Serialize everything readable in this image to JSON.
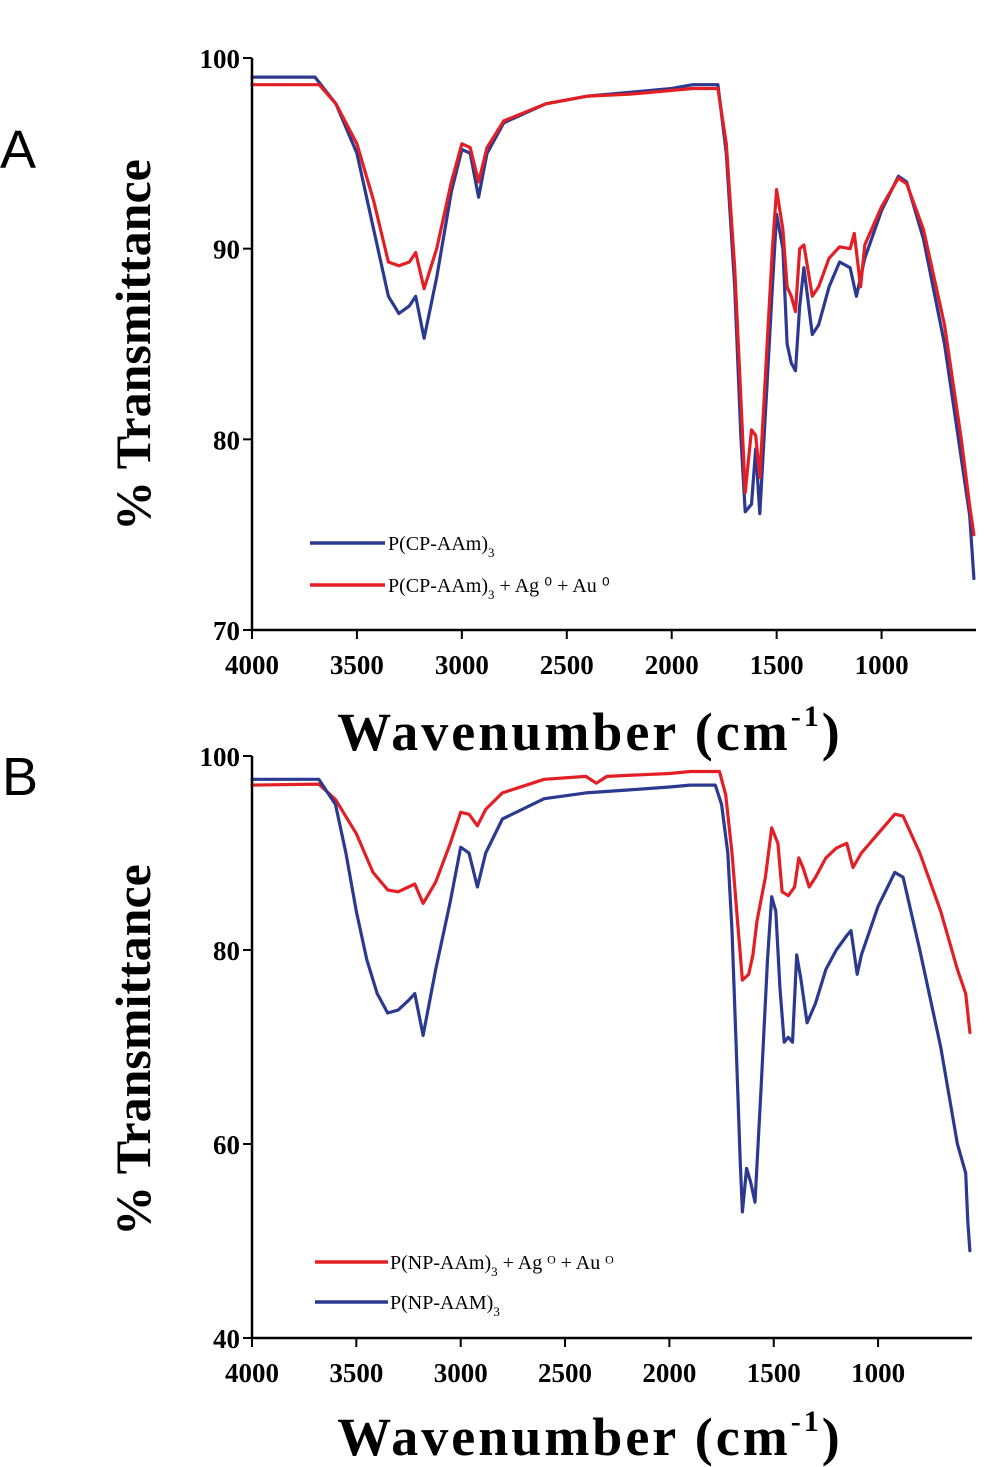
{
  "chart_data": [
    {
      "type": "line",
      "panel_label": "A",
      "xlabel": "Wavenumber (cm",
      "xlabel_sup": "-1",
      "xlabel_close": ")",
      "ylabel": "% Transmittance",
      "xlim": [
        4000,
        550
      ],
      "ylim": [
        70,
        100
      ],
      "xticks": [
        4000,
        3500,
        3000,
        2500,
        2000,
        1500,
        1000
      ],
      "yticks": [
        70,
        80,
        90,
        100
      ],
      "grid": false,
      "legend_position": "bottom-left",
      "series": [
        {
          "name": "P(CP-AAm)",
          "name_sub": "3",
          "name_rest": "",
          "color": "#2b3990",
          "points": [
            [
              4000,
              99.0
            ],
            [
              3700,
              99.0
            ],
            [
              3600,
              97.6
            ],
            [
              3500,
              95.0
            ],
            [
              3420,
              91.0
            ],
            [
              3350,
              87.5
            ],
            [
              3300,
              86.6
            ],
            [
              3250,
              87.0
            ],
            [
              3220,
              87.5
            ],
            [
              3180,
              85.3
            ],
            [
              3120,
              88.5
            ],
            [
              3050,
              93.0
            ],
            [
              3000,
              95.2
            ],
            [
              2960,
              95.0
            ],
            [
              2920,
              92.7
            ],
            [
              2880,
              95.0
            ],
            [
              2800,
              96.6
            ],
            [
              2600,
              97.6
            ],
            [
              2400,
              98.0
            ],
            [
              2200,
              98.2
            ],
            [
              2000,
              98.4
            ],
            [
              1900,
              98.6
            ],
            [
              1780,
              98.6
            ],
            [
              1740,
              95.0
            ],
            [
              1700,
              88.0
            ],
            [
              1670,
              80.0
            ],
            [
              1650,
              76.2
            ],
            [
              1620,
              76.6
            ],
            [
              1600,
              79.5
            ],
            [
              1580,
              76.1
            ],
            [
              1550,
              82.0
            ],
            [
              1520,
              88.0
            ],
            [
              1500,
              91.8
            ],
            [
              1470,
              90.0
            ],
            [
              1450,
              85.0
            ],
            [
              1430,
              84.0
            ],
            [
              1410,
              83.6
            ],
            [
              1390,
              87.0
            ],
            [
              1370,
              89.0
            ],
            [
              1330,
              85.5
            ],
            [
              1300,
              86.0
            ],
            [
              1250,
              88.0
            ],
            [
              1200,
              89.3
            ],
            [
              1150,
              89.0
            ],
            [
              1120,
              87.5
            ],
            [
              1080,
              89.5
            ],
            [
              1000,
              92.0
            ],
            [
              920,
              93.8
            ],
            [
              880,
              93.5
            ],
            [
              800,
              90.5
            ],
            [
              700,
              85.0
            ],
            [
              620,
              79.0
            ],
            [
              580,
              76.0
            ],
            [
              560,
              72.7
            ]
          ]
        },
        {
          "name": "P(CP-AAm)",
          "name_sub": "3",
          "name_rest": " + Ag ⁰ + Au ⁰",
          "color": "#e31e24",
          "points": [
            [
              4000,
              98.6
            ],
            [
              3680,
              98.6
            ],
            [
              3600,
              97.6
            ],
            [
              3500,
              95.5
            ],
            [
              3420,
              92.5
            ],
            [
              3350,
              89.3
            ],
            [
              3300,
              89.1
            ],
            [
              3250,
              89.3
            ],
            [
              3220,
              89.8
            ],
            [
              3180,
              87.9
            ],
            [
              3120,
              90.0
            ],
            [
              3050,
              93.5
            ],
            [
              3000,
              95.5
            ],
            [
              2960,
              95.3
            ],
            [
              2920,
              93.5
            ],
            [
              2880,
              95.3
            ],
            [
              2800,
              96.7
            ],
            [
              2600,
              97.6
            ],
            [
              2400,
              98.0
            ],
            [
              2200,
              98.1
            ],
            [
              2000,
              98.3
            ],
            [
              1900,
              98.4
            ],
            [
              1780,
              98.4
            ],
            [
              1740,
              95.5
            ],
            [
              1700,
              89.0
            ],
            [
              1670,
              82.0
            ],
            [
              1650,
              77.2
            ],
            [
              1620,
              80.5
            ],
            [
              1600,
              80.2
            ],
            [
              1580,
              78.0
            ],
            [
              1550,
              84.0
            ],
            [
              1520,
              90.0
            ],
            [
              1500,
              93.1
            ],
            [
              1470,
              91.0
            ],
            [
              1450,
              88.0
            ],
            [
              1430,
              87.5
            ],
            [
              1410,
              86.7
            ],
            [
              1390,
              90.0
            ],
            [
              1370,
              90.2
            ],
            [
              1330,
              87.5
            ],
            [
              1300,
              88.0
            ],
            [
              1250,
              89.5
            ],
            [
              1200,
              90.1
            ],
            [
              1150,
              90.0
            ],
            [
              1130,
              90.8
            ],
            [
              1100,
              88.0
            ],
            [
              1080,
              90.2
            ],
            [
              1000,
              92.2
            ],
            [
              920,
              93.7
            ],
            [
              880,
              93.4
            ],
            [
              800,
              91.0
            ],
            [
              700,
              86.0
            ],
            [
              620,
              80.0
            ],
            [
              580,
              76.5
            ],
            [
              560,
              75.0
            ]
          ]
        }
      ]
    },
    {
      "type": "line",
      "panel_label": "B",
      "xlabel": "Wavenumber (cm",
      "xlabel_sup": "-1",
      "xlabel_close": ")",
      "ylabel": "% Transmittance",
      "xlim": [
        4000,
        550
      ],
      "ylim": [
        40,
        100
      ],
      "xticks": [
        4000,
        3500,
        3000,
        2500,
        2000,
        1500,
        1000
      ],
      "yticks": [
        40,
        60,
        80,
        100
      ],
      "grid": false,
      "legend_position": "bottom-left",
      "series": [
        {
          "name": "P(NP-AAm)",
          "name_sub": "3",
          "name_rest": " + Ag ᴼ + Au ᴼ",
          "color": "#e31e24",
          "points": [
            [
              4000,
              97.0
            ],
            [
              3680,
              97.1
            ],
            [
              3600,
              95.5
            ],
            [
              3500,
              92.0
            ],
            [
              3420,
              88.0
            ],
            [
              3350,
              86.2
            ],
            [
              3300,
              86.0
            ],
            [
              3250,
              86.5
            ],
            [
              3220,
              86.8
            ],
            [
              3180,
              84.8
            ],
            [
              3120,
              87.0
            ],
            [
              3050,
              91.0
            ],
            [
              3000,
              94.2
            ],
            [
              2960,
              94.0
            ],
            [
              2920,
              92.8
            ],
            [
              2880,
              94.5
            ],
            [
              2800,
              96.2
            ],
            [
              2600,
              97.6
            ],
            [
              2400,
              97.9
            ],
            [
              2350,
              97.2
            ],
            [
              2300,
              97.9
            ],
            [
              2200,
              98.0
            ],
            [
              2000,
              98.2
            ],
            [
              1900,
              98.4
            ],
            [
              1760,
              98.4
            ],
            [
              1730,
              96.0
            ],
            [
              1700,
              90.0
            ],
            [
              1670,
              82.0
            ],
            [
              1650,
              76.9
            ],
            [
              1620,
              77.5
            ],
            [
              1600,
              79.5
            ],
            [
              1580,
              83.0
            ],
            [
              1540,
              87.5
            ],
            [
              1510,
              92.6
            ],
            [
              1480,
              91.0
            ],
            [
              1460,
              86.0
            ],
            [
              1430,
              85.6
            ],
            [
              1400,
              86.5
            ],
            [
              1380,
              89.5
            ],
            [
              1360,
              88.5
            ],
            [
              1330,
              86.5
            ],
            [
              1300,
              87.5
            ],
            [
              1250,
              89.5
            ],
            [
              1200,
              90.5
            ],
            [
              1150,
              91.0
            ],
            [
              1120,
              88.5
            ],
            [
              1080,
              90.0
            ],
            [
              1000,
              92.0
            ],
            [
              920,
              94.0
            ],
            [
              880,
              93.8
            ],
            [
              800,
              90.0
            ],
            [
              700,
              84.0
            ],
            [
              620,
              78.0
            ],
            [
              580,
              75.5
            ],
            [
              560,
              71.5
            ]
          ]
        },
        {
          "name": "P(NP-AAM)",
          "name_sub": "3",
          "name_rest": "",
          "color": "#2b3990",
          "points": [
            [
              4000,
              97.6
            ],
            [
              3680,
              97.6
            ],
            [
              3600,
              95.0
            ],
            [
              3550,
              90.0
            ],
            [
              3500,
              84.0
            ],
            [
              3450,
              79.0
            ],
            [
              3400,
              75.5
            ],
            [
              3350,
              73.5
            ],
            [
              3300,
              73.8
            ],
            [
              3250,
              74.8
            ],
            [
              3220,
              75.5
            ],
            [
              3180,
              71.2
            ],
            [
              3120,
              78.0
            ],
            [
              3050,
              85.0
            ],
            [
              3000,
              90.6
            ],
            [
              2960,
              90.0
            ],
            [
              2920,
              86.5
            ],
            [
              2880,
              90.0
            ],
            [
              2800,
              93.5
            ],
            [
              2600,
              95.6
            ],
            [
              2400,
              96.2
            ],
            [
              2200,
              96.5
            ],
            [
              2000,
              96.8
            ],
            [
              1900,
              97.0
            ],
            [
              1780,
              97.0
            ],
            [
              1750,
              95.0
            ],
            [
              1720,
              90.0
            ],
            [
              1700,
              82.0
            ],
            [
              1680,
              70.0
            ],
            [
              1660,
              58.0
            ],
            [
              1650,
              53.0
            ],
            [
              1630,
              57.5
            ],
            [
              1610,
              56.0
            ],
            [
              1590,
              54.0
            ],
            [
              1560,
              66.0
            ],
            [
              1530,
              79.0
            ],
            [
              1510,
              85.5
            ],
            [
              1490,
              84.0
            ],
            [
              1470,
              76.0
            ],
            [
              1450,
              70.5
            ],
            [
              1430,
              71.0
            ],
            [
              1410,
              70.5
            ],
            [
              1390,
              79.5
            ],
            [
              1370,
              77.0
            ],
            [
              1340,
              72.5
            ],
            [
              1300,
              74.5
            ],
            [
              1250,
              78.0
            ],
            [
              1200,
              80.0
            ],
            [
              1150,
              81.5
            ],
            [
              1130,
              82.0
            ],
            [
              1100,
              77.5
            ],
            [
              1080,
              79.5
            ],
            [
              1000,
              84.5
            ],
            [
              920,
              88.0
            ],
            [
              880,
              87.5
            ],
            [
              800,
              80.0
            ],
            [
              700,
              70.0
            ],
            [
              620,
              60.0
            ],
            [
              580,
              57.0
            ],
            [
              570,
              52.0
            ],
            [
              560,
              49.0
            ]
          ]
        }
      ]
    }
  ]
}
